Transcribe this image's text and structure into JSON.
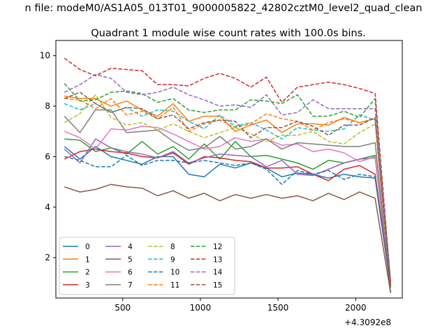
{
  "chart_data": {
    "type": "line",
    "suptitle": "n file: modeM0/AS1A05_013T01_9000005822_42802cztM0_level2_quad_clean",
    "title": "Quadrant 1 module wise count rates with 100.0s bins.",
    "xlabel": "",
    "ylabel": "",
    "offset_label": "+4.3092e8",
    "xlim": [
      70,
      2300
    ],
    "ylim": [
      0.4,
      10.6
    ],
    "xticks": [
      500,
      1000,
      1500,
      2000
    ],
    "yticks": [
      2,
      4,
      6,
      8,
      10
    ],
    "legend_position": "lower left",
    "legend_columns": 4,
    "x": [
      125,
      225,
      325,
      425,
      525,
      625,
      725,
      825,
      925,
      1025,
      1125,
      1225,
      1325,
      1425,
      1525,
      1625,
      1725,
      1825,
      1925,
      2025,
      2125,
      2225
    ],
    "series": [
      {
        "name": "0",
        "color": "#1f77b4",
        "style": "solid",
        "values": [
          6.4,
          5.9,
          6.4,
          6.0,
          5.85,
          5.7,
          6.0,
          6.0,
          5.3,
          5.2,
          5.7,
          5.55,
          5.75,
          5.55,
          5.2,
          5.35,
          5.3,
          5.15,
          5.3,
          5.2,
          5.15,
          0.8
        ]
      },
      {
        "name": "1",
        "color": "#ff7f0e",
        "style": "solid",
        "values": [
          8.4,
          8.3,
          8.3,
          8.0,
          8.2,
          7.85,
          7.6,
          8.1,
          7.4,
          7.6,
          7.6,
          7.0,
          7.25,
          7.45,
          6.95,
          7.3,
          7.3,
          7.25,
          7.55,
          7.35,
          7.5,
          0.8
        ]
      },
      {
        "name": "2",
        "color": "#2ca02c",
        "style": "solid",
        "values": [
          6.7,
          6.65,
          6.2,
          6.35,
          6.1,
          6.6,
          6.1,
          6.4,
          5.9,
          6.5,
          5.9,
          6.6,
          6.0,
          6.05,
          5.9,
          5.75,
          5.5,
          5.85,
          5.75,
          5.9,
          6.05,
          0.6
        ]
      },
      {
        "name": "3",
        "color": "#d62728",
        "style": "solid",
        "values": [
          5.9,
          6.2,
          6.3,
          6.2,
          6.15,
          6.0,
          5.95,
          6.15,
          5.7,
          6.0,
          5.95,
          5.85,
          5.8,
          5.55,
          5.55,
          5.6,
          5.3,
          5.05,
          5.5,
          5.65,
          5.3,
          0.8
        ]
      },
      {
        "name": "4",
        "color": "#9467bd",
        "style": "solid",
        "values": [
          6.3,
          5.75,
          6.7,
          6.35,
          6.2,
          6.1,
          5.95,
          6.2,
          5.75,
          5.95,
          6.1,
          6.05,
          6.0,
          5.6,
          5.85,
          5.3,
          5.25,
          5.5,
          5.75,
          5.9,
          5.95,
          0.8
        ]
      },
      {
        "name": "5",
        "color": "#8c564b",
        "style": "solid",
        "values": [
          4.8,
          4.6,
          4.7,
          4.9,
          4.8,
          4.75,
          4.45,
          4.65,
          4.35,
          4.55,
          4.25,
          4.5,
          4.35,
          4.5,
          4.35,
          4.45,
          4.25,
          4.55,
          4.3,
          4.6,
          4.35,
          0.6
        ]
      },
      {
        "name": "6",
        "color": "#e377c2",
        "style": "solid",
        "values": [
          7.0,
          6.75,
          6.3,
          7.1,
          7.05,
          7.2,
          7.15,
          6.9,
          6.6,
          6.3,
          6.4,
          6.75,
          6.6,
          6.7,
          6.45,
          6.5,
          6.2,
          6.3,
          6.15,
          5.8,
          6.0,
          0.9
        ]
      },
      {
        "name": "7",
        "color": "#7f7f7f",
        "style": "solid",
        "values": [
          7.6,
          6.95,
          7.85,
          7.85,
          6.95,
          7.0,
          7.05,
          6.6,
          6.25,
          6.35,
          6.8,
          6.3,
          6.4,
          6.7,
          6.3,
          6.55,
          6.5,
          6.45,
          6.4,
          6.4,
          6.55,
          0.8
        ]
      },
      {
        "name": "8",
        "color": "#bcbd22",
        "style": "dashed",
        "values": [
          7.35,
          7.7,
          8.45,
          7.55,
          7.25,
          7.35,
          7.05,
          7.3,
          7.0,
          6.75,
          6.95,
          7.15,
          6.9,
          6.6,
          6.85,
          6.85,
          7.0,
          6.6,
          6.5,
          6.95,
          7.3,
          0.8
        ]
      },
      {
        "name": "9",
        "color": "#17becf",
        "style": "dashed",
        "values": [
          8.1,
          7.85,
          8.1,
          7.75,
          7.95,
          7.6,
          7.85,
          7.8,
          7.4,
          7.1,
          7.65,
          7.2,
          7.35,
          7.05,
          6.7,
          7.15,
          7.05,
          7.0,
          7.1,
          7.65,
          7.45,
          1.0
        ]
      },
      {
        "name": "10",
        "color": "#1f77b4",
        "style": "dashed",
        "values": [
          6.0,
          5.85,
          5.6,
          5.6,
          6.05,
          5.65,
          5.85,
          5.85,
          5.75,
          5.85,
          5.75,
          5.65,
          5.75,
          5.5,
          4.9,
          5.45,
          5.3,
          5.45,
          5.1,
          5.3,
          5.2,
          0.9
        ]
      },
      {
        "name": "11",
        "color": "#ff7f0e",
        "style": "dashed",
        "values": [
          8.3,
          8.25,
          7.9,
          8.3,
          7.65,
          7.8,
          7.5,
          7.95,
          7.0,
          7.3,
          7.45,
          7.15,
          7.3,
          7.7,
          7.5,
          7.4,
          7.05,
          7.35,
          7.5,
          7.35,
          7.5,
          0.8
        ]
      },
      {
        "name": "12",
        "color": "#2ca02c",
        "style": "dashed",
        "values": [
          8.9,
          8.2,
          8.25,
          8.55,
          8.6,
          8.5,
          8.15,
          8.3,
          7.85,
          7.75,
          7.85,
          7.85,
          8.25,
          8.2,
          8.1,
          8.45,
          7.6,
          7.6,
          7.8,
          7.55,
          8.3,
          0.8
        ]
      },
      {
        "name": "13",
        "color": "#d62728",
        "style": "dashed",
        "values": [
          9.9,
          9.45,
          9.2,
          9.5,
          9.45,
          9.4,
          8.85,
          8.85,
          8.8,
          9.1,
          9.3,
          9.1,
          8.75,
          9.15,
          8.15,
          8.75,
          8.85,
          8.95,
          8.85,
          8.7,
          8.5,
          1.0
        ]
      },
      {
        "name": "14",
        "color": "#9467bd",
        "style": "dashed",
        "values": [
          8.55,
          8.85,
          9.25,
          9.1,
          8.55,
          8.45,
          8.55,
          8.75,
          8.45,
          8.25,
          8.0,
          8.05,
          7.95,
          8.45,
          7.65,
          7.75,
          8.25,
          7.9,
          7.9,
          7.9,
          7.9,
          1.1
        ]
      },
      {
        "name": "15",
        "color": "#8c564b",
        "style": "dashed",
        "values": [
          8.3,
          8.55,
          8.1,
          7.75,
          7.95,
          7.9,
          7.5,
          7.65,
          7.1,
          7.35,
          7.45,
          7.4,
          6.75,
          7.15,
          7.15,
          7.4,
          7.2,
          6.85,
          7.25,
          7.25,
          7.55,
          0.9
        ]
      }
    ]
  }
}
